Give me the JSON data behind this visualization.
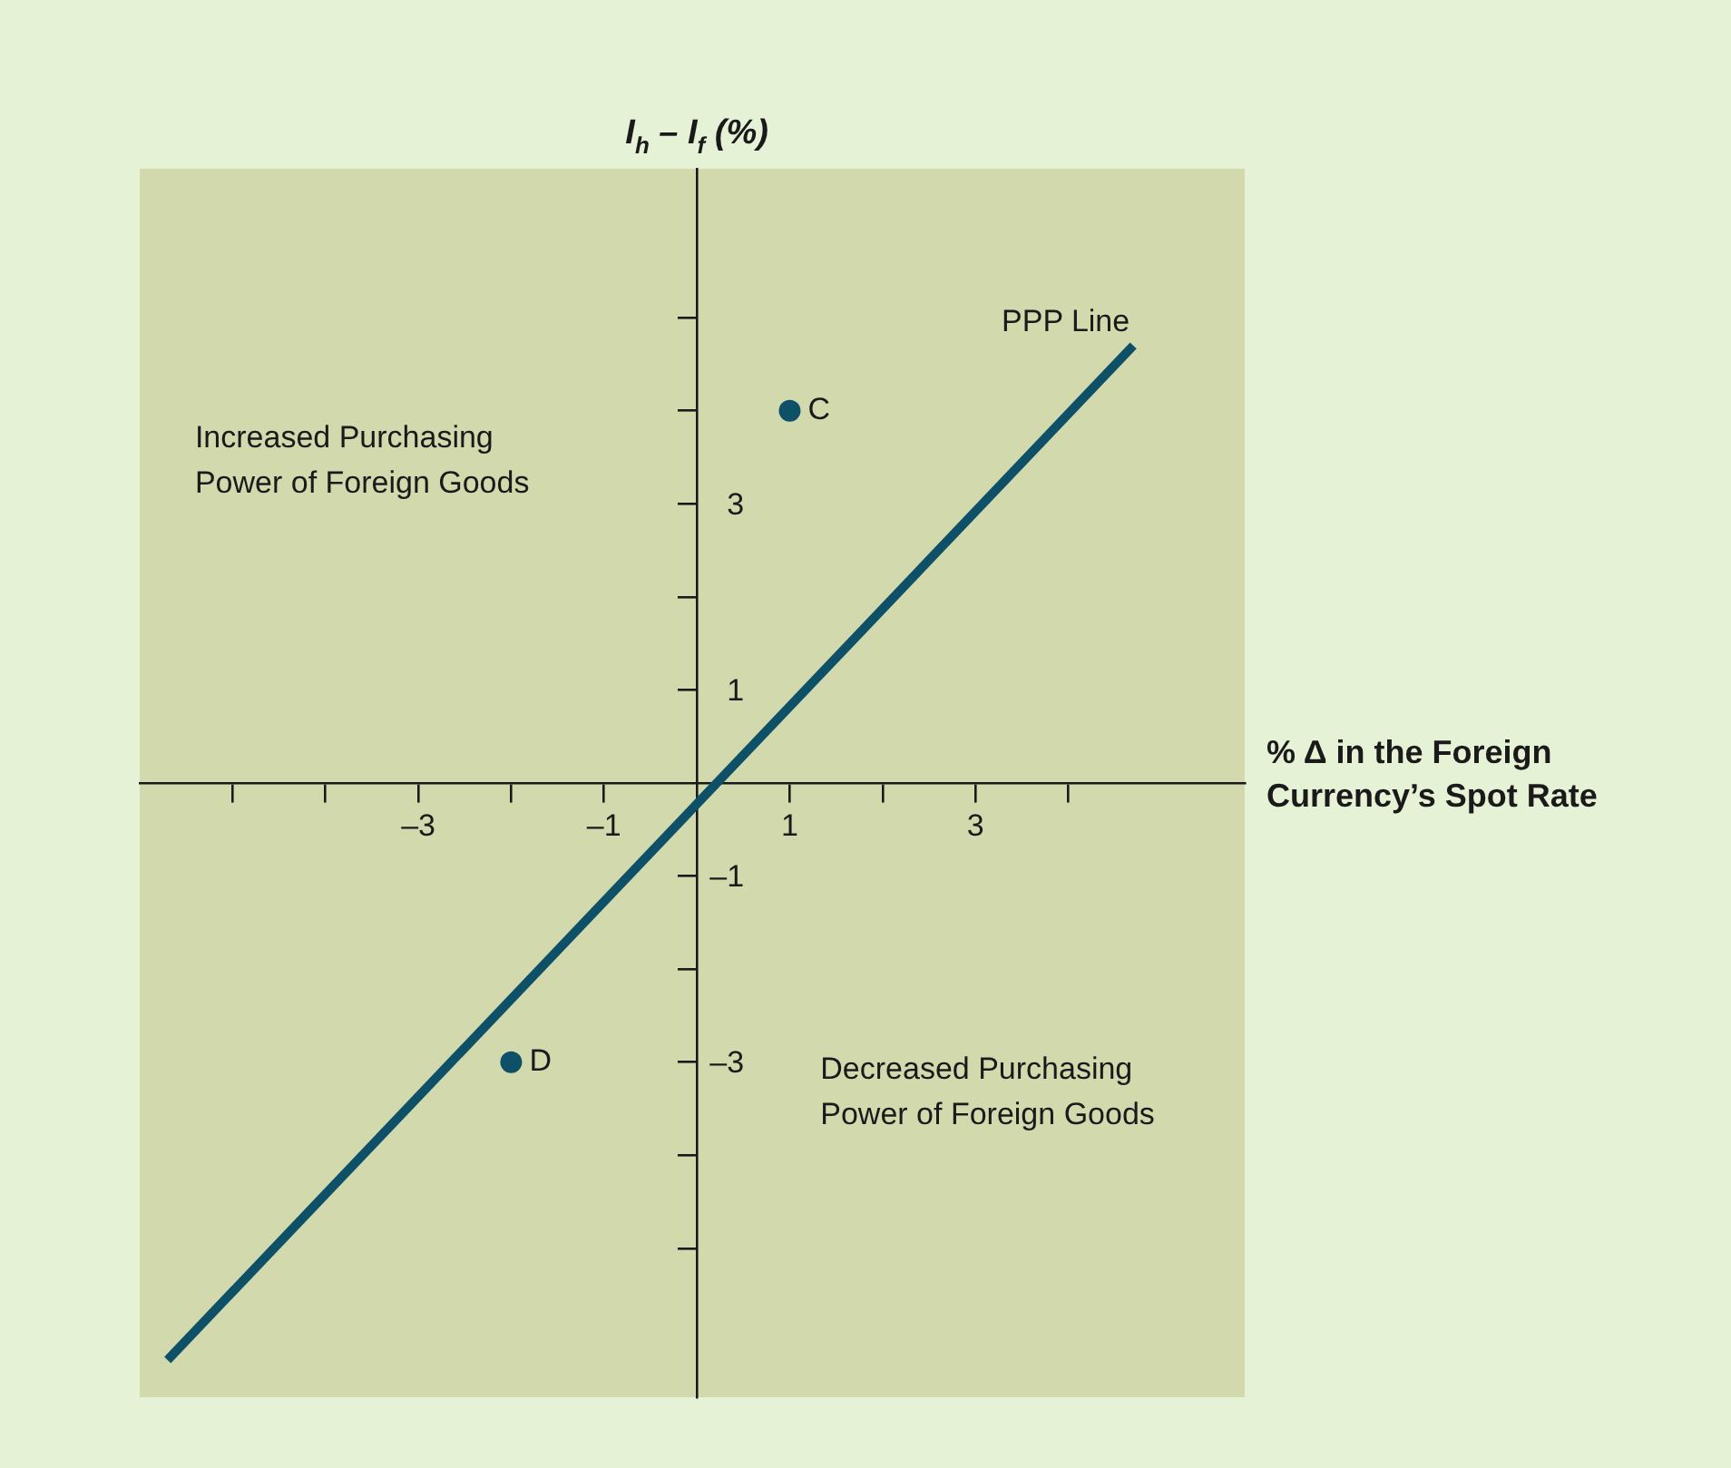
{
  "chart_data": {
    "type": "scatter",
    "ylabel": "I$_{h}$ – I$_{f}$ (%)",
    "xlabel": "% Δ in the Foreign Currency’s Spot Rate",
    "xlim": [
      -6,
      5.9
    ],
    "ylim": [
      -6.6,
      6.6
    ],
    "xticks": [
      {
        "value": -5,
        "label": null
      },
      {
        "value": -4,
        "label": null
      },
      {
        "value": -3,
        "label": "–3"
      },
      {
        "value": -2,
        "label": null
      },
      {
        "value": -1,
        "label": "–1"
      },
      {
        "value": 1,
        "label": "1"
      },
      {
        "value": 2,
        "label": null
      },
      {
        "value": 3,
        "label": "3"
      },
      {
        "value": 4,
        "label": null
      }
    ],
    "yticks": [
      {
        "value": -5,
        "label": null
      },
      {
        "value": -4,
        "label": null
      },
      {
        "value": -3,
        "label": "–3"
      },
      {
        "value": -2,
        "label": null
      },
      {
        "value": -1,
        "label": "–1"
      },
      {
        "value": 1,
        "label": "1"
      },
      {
        "value": 2,
        "label": null
      },
      {
        "value": 3,
        "label": "3"
      },
      {
        "value": 4,
        "label": null
      },
      {
        "value": 5,
        "label": null
      }
    ],
    "series": [
      {
        "name": "PPP Line",
        "type": "line",
        "color": "#0e5068",
        "marker": "none",
        "line_style": "solid",
        "x": [
          -5.7,
          4.7
        ],
        "values": [
          -6.2,
          4.7
        ]
      },
      {
        "name": "C",
        "type": "scatter",
        "color": "#0e5068",
        "marker": "circle",
        "x": [
          1
        ],
        "values": [
          4
        ]
      },
      {
        "name": "D",
        "type": "scatter",
        "color": "#0e5068",
        "marker": "circle",
        "x": [
          -2
        ],
        "values": [
          -3
        ]
      }
    ],
    "annotations": [
      "Increased Purchasing Power of Foreign Goods",
      "Decreased Purchasing Power of Foreign Goods"
    ],
    "legend": false
  }
}
